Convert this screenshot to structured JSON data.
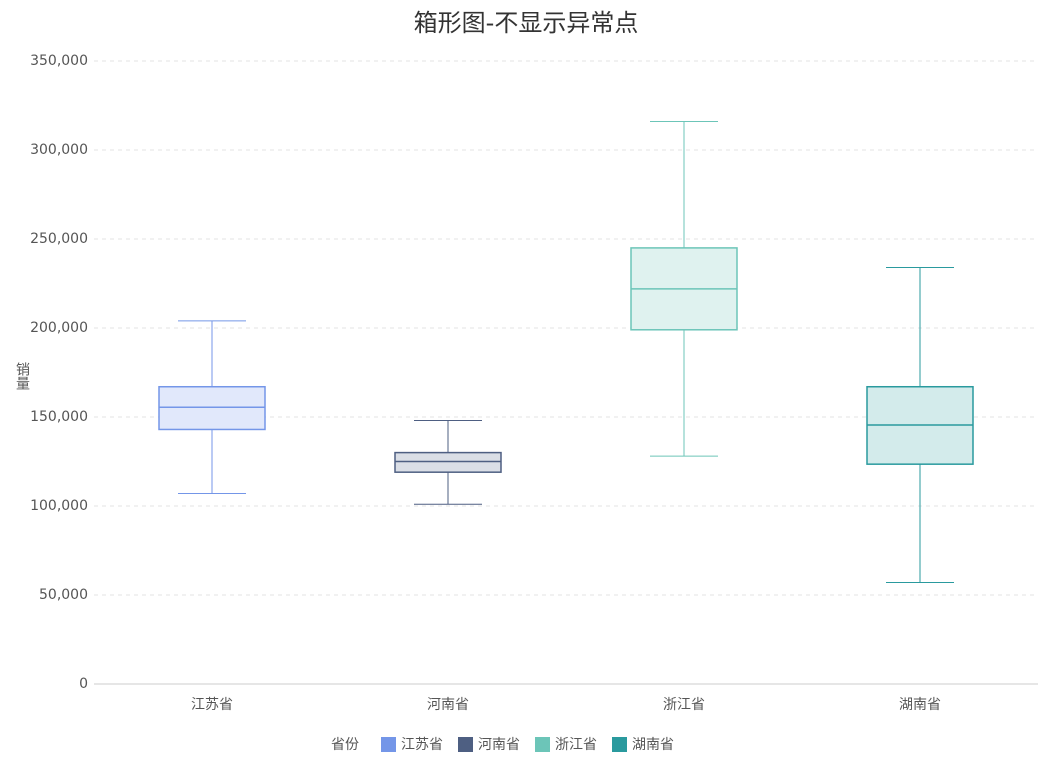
{
  "chart_data": {
    "type": "boxplot",
    "title": "箱形图-不显示异常点",
    "y_label": "销量",
    "legend_title": "省份",
    "categories": [
      "江苏省",
      "河南省",
      "浙江省",
      "湖南省"
    ],
    "series": [
      {
        "name": "江苏省",
        "color": "#7496e8",
        "fill": "#e1e8fb",
        "min": 107000,
        "q1": 143000,
        "median": 155500,
        "q3": 167000,
        "max": 204000
      },
      {
        "name": "河南省",
        "color": "#4e5f82",
        "fill": "#dadee6",
        "min": 101000,
        "q1": 119000,
        "median": 125000,
        "q3": 130000,
        "max": 148000
      },
      {
        "name": "浙江省",
        "color": "#6cc5b8",
        "fill": "#dff2ef",
        "min": 128000,
        "q1": 199000,
        "median": 222000,
        "q3": 245000,
        "max": 316000
      },
      {
        "name": "湖南省",
        "color": "#2a9a9e",
        "fill": "#d3ebeb",
        "min": 57000,
        "q1": 123500,
        "median": 145500,
        "q3": 167000,
        "max": 234000
      }
    ],
    "ylim": [
      0,
      350000
    ],
    "yticks": [
      0,
      {
        "value": 50000,
        "label": "50,000"
      },
      {
        "value": 100000,
        "label": "100,000"
      },
      {
        "value": 150000,
        "label": "150,000"
      },
      {
        "value": 200000,
        "label": "200,000"
      },
      {
        "value": 250000,
        "label": "250,000"
      },
      {
        "value": 300000,
        "label": "300,000"
      },
      {
        "value": 350000,
        "label": "350,000"
      }
    ],
    "grid": true
  }
}
